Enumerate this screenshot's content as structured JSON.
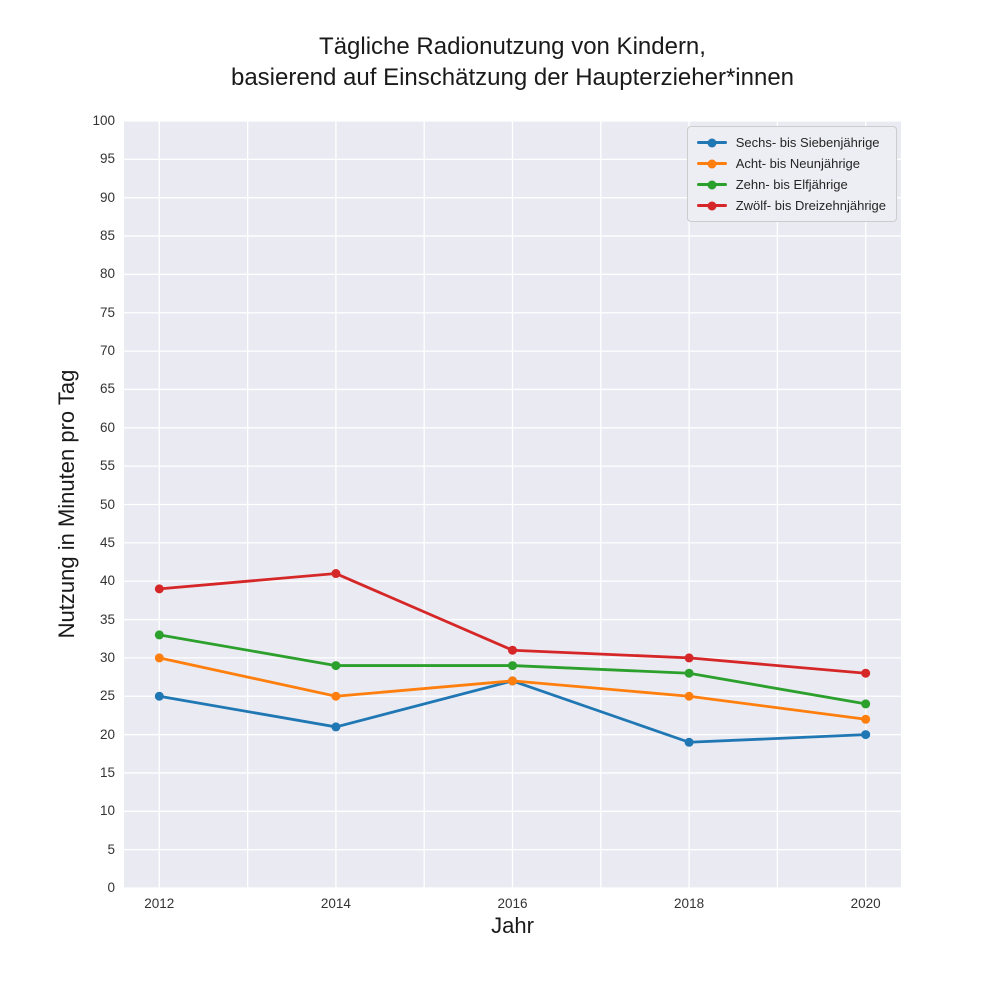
{
  "chart_data": {
    "type": "line",
    "title_line1": "Tägliche Radionutzung von Kindern,",
    "title_line2": "basierend auf Einschätzung der Haupterzieher*innen",
    "xlabel": "Jahr",
    "ylabel": "Nutzung in Minuten pro Tag",
    "x": [
      2012,
      2014,
      2016,
      2018,
      2020
    ],
    "series": [
      {
        "name": "Sechs- bis Siebenjährige",
        "color": "#1f77b4",
        "values": [
          25,
          21,
          27,
          19,
          20
        ]
      },
      {
        "name": "Acht- bis Neunjährige",
        "color": "#ff7f0e",
        "values": [
          30,
          25,
          27,
          25,
          22
        ]
      },
      {
        "name": "Zehn- bis Elfjährige",
        "color": "#2ca02c",
        "values": [
          33,
          29,
          29,
          28,
          24
        ]
      },
      {
        "name": "Zwölf- bis Dreizehnjährige",
        "color": "#d62728",
        "values": [
          39,
          41,
          31,
          30,
          28
        ]
      }
    ],
    "xlim": [
      2011.6,
      2020.4
    ],
    "ylim": [
      0,
      100
    ],
    "xticks": [
      2012,
      2014,
      2016,
      2018,
      2020
    ],
    "yticks": [
      0,
      5,
      10,
      15,
      20,
      25,
      30,
      35,
      40,
      45,
      50,
      55,
      60,
      65,
      70,
      75,
      80,
      85,
      90,
      95,
      100
    ],
    "x_gridlines": [
      2012,
      2013,
      2014,
      2015,
      2016,
      2017,
      2018,
      2019,
      2020
    ],
    "grid": true,
    "legend_position": "upper right",
    "plot_bg": "#eaeaf2",
    "grid_color": "#ffffff"
  }
}
